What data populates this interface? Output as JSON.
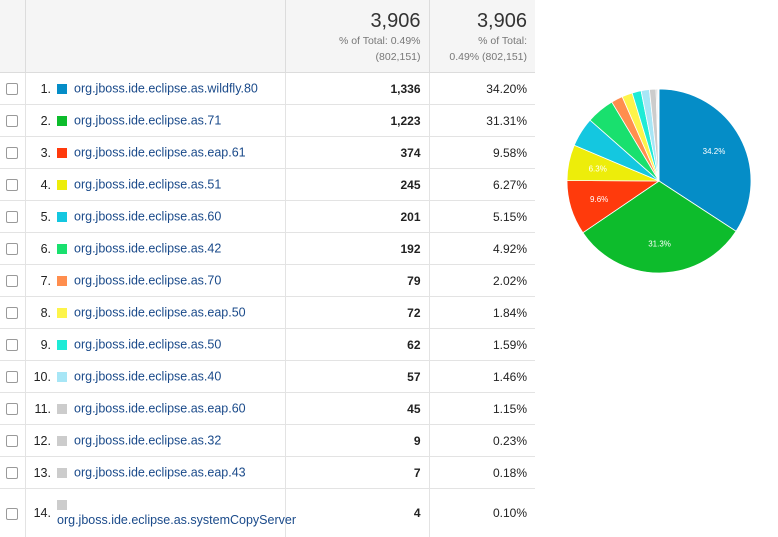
{
  "header": {
    "sessions_total": "3,906",
    "sessions_pct_line": "% of Total: 0.49%",
    "sessions_base_line": "(802,151)",
    "pct_total": "3,906",
    "pct_pct_line": "% of Total:",
    "pct_base_line": "0.49% (802,151)"
  },
  "rows": [
    {
      "index": "1.",
      "label": "org.jboss.ide.eclipse.as.wildfly.80",
      "sessions": "1,336",
      "percent": "34.20%",
      "color": "#058dc7"
    },
    {
      "index": "2.",
      "label": "org.jboss.ide.eclipse.as.71",
      "sessions": "1,223",
      "percent": "31.31%",
      "color": "#0dbc2c"
    },
    {
      "index": "3.",
      "label": "org.jboss.ide.eclipse.as.eap.61",
      "sessions": "374",
      "percent": "9.58%",
      "color": "#ff3a0c"
    },
    {
      "index": "4.",
      "label": "org.jboss.ide.eclipse.as.51",
      "sessions": "245",
      "percent": "6.27%",
      "color": "#eded0a"
    },
    {
      "index": "5.",
      "label": "org.jboss.ide.eclipse.as.60",
      "sessions": "201",
      "percent": "5.15%",
      "color": "#14c7e0"
    },
    {
      "index": "6.",
      "label": "org.jboss.ide.eclipse.as.42",
      "sessions": "192",
      "percent": "4.92%",
      "color": "#19e06e"
    },
    {
      "index": "7.",
      "label": "org.jboss.ide.eclipse.as.70",
      "sessions": "79",
      "percent": "2.02%",
      "color": "#ff8e4e"
    },
    {
      "index": "8.",
      "label": "org.jboss.ide.eclipse.as.eap.50",
      "sessions": "72",
      "percent": "1.84%",
      "color": "#fdf44a"
    },
    {
      "index": "9.",
      "label": "org.jboss.ide.eclipse.as.50",
      "sessions": "62",
      "percent": "1.59%",
      "color": "#1eebd6"
    },
    {
      "index": "10.",
      "label": "org.jboss.ide.eclipse.as.40",
      "sessions": "57",
      "percent": "1.46%",
      "color": "#a7e6f6"
    },
    {
      "index": "11.",
      "label": "org.jboss.ide.eclipse.as.eap.60",
      "sessions": "45",
      "percent": "1.15%",
      "color": "#cccccc"
    },
    {
      "index": "12.",
      "label": "org.jboss.ide.eclipse.as.32",
      "sessions": "9",
      "percent": "0.23%",
      "color": "#cccccc"
    },
    {
      "index": "13.",
      "label": "org.jboss.ide.eclipse.as.eap.43",
      "sessions": "7",
      "percent": "0.18%",
      "color": "#cccccc"
    },
    {
      "index": "14.",
      "label": "org.jboss.ide.eclipse.as.systemCopyServer",
      "sessions": "4",
      "percent": "0.10%",
      "color": "#cccccc"
    }
  ],
  "chart_data": {
    "type": "pie",
    "slices": [
      {
        "value": 34.2,
        "color": "#058dc7",
        "label": "34.2%"
      },
      {
        "value": 31.31,
        "color": "#0dbc2c",
        "label": "31.3%"
      },
      {
        "value": 9.58,
        "color": "#ff3a0c",
        "label": "9.6%"
      },
      {
        "value": 6.27,
        "color": "#eded0a",
        "label": "6.3%"
      },
      {
        "value": 5.15,
        "color": "#14c7e0",
        "label": ""
      },
      {
        "value": 4.92,
        "color": "#19e06e",
        "label": ""
      },
      {
        "value": 2.02,
        "color": "#ff8e4e",
        "label": ""
      },
      {
        "value": 1.84,
        "color": "#fdf44a",
        "label": ""
      },
      {
        "value": 1.59,
        "color": "#1eebd6",
        "label": ""
      },
      {
        "value": 1.46,
        "color": "#a7e6f6",
        "label": ""
      },
      {
        "value": 1.15,
        "color": "#cccccc",
        "label": ""
      },
      {
        "value": 0.23,
        "color": "#cccccc",
        "label": ""
      },
      {
        "value": 0.18,
        "color": "#cccccc",
        "label": ""
      },
      {
        "value": 0.1,
        "color": "#cccccc",
        "label": ""
      }
    ]
  }
}
